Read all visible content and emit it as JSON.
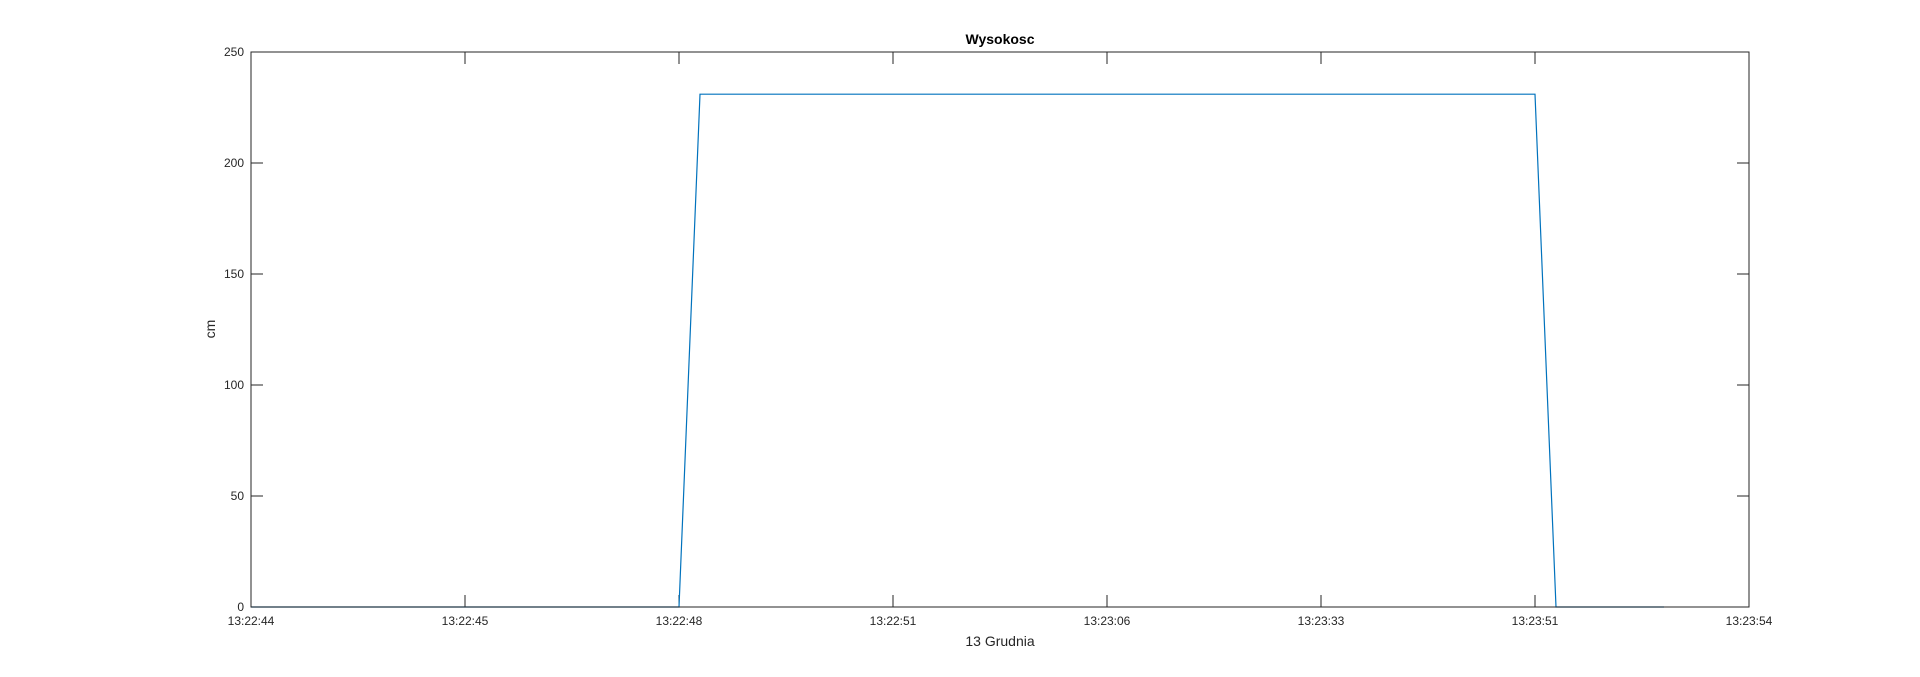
{
  "chart_data": {
    "type": "line",
    "title": "Wysokosc",
    "xlabel": "13 Grudnia",
    "ylabel": "cm",
    "x_tick_labels": [
      "13:22:44",
      "13:22:45",
      "13:22:48",
      "13:22:51",
      "13:23:06",
      "13:23:33",
      "13:23:51",
      "13:23:54"
    ],
    "yticks": [
      0,
      50,
      100,
      150,
      200,
      250
    ],
    "ylim": [
      0,
      250
    ],
    "grid": false,
    "series": [
      {
        "color": "#0072BD",
        "points": [
          {
            "x": "13:22:44",
            "y": 0
          },
          {
            "x": "13:22:48",
            "y": 0
          },
          {
            "x": "13:22:48",
            "y": 231
          },
          {
            "x": "13:23:51",
            "y": 231
          },
          {
            "x": "13:23:51",
            "y": 0
          },
          {
            "x": "13:23:54",
            "y": 0
          }
        ]
      }
    ]
  }
}
